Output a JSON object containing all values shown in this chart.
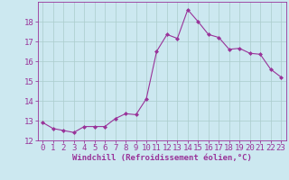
{
  "x": [
    0,
    1,
    2,
    3,
    4,
    5,
    6,
    7,
    8,
    9,
    10,
    11,
    12,
    13,
    14,
    15,
    16,
    17,
    18,
    19,
    20,
    21,
    22,
    23
  ],
  "y": [
    12.9,
    12.6,
    12.5,
    12.4,
    12.7,
    12.7,
    12.7,
    13.1,
    13.35,
    13.3,
    14.1,
    16.5,
    17.35,
    17.15,
    18.6,
    18.0,
    17.35,
    17.2,
    16.6,
    16.65,
    16.4,
    16.35,
    15.6,
    15.2
  ],
  "line_color": "#993399",
  "marker": "D",
  "marker_size": 2.0,
  "bg_color": "#cce8f0",
  "grid_color": "#aacccc",
  "xlabel": "Windchill (Refroidissement éolien,°C)",
  "xlabel_fontsize": 6.5,
  "tick_fontsize": 6.5,
  "ylim": [
    12,
    19
  ],
  "xlim": [
    -0.5,
    23.5
  ],
  "yticks": [
    12,
    13,
    14,
    15,
    16,
    17,
    18
  ],
  "xticks": [
    0,
    1,
    2,
    3,
    4,
    5,
    6,
    7,
    8,
    9,
    10,
    11,
    12,
    13,
    14,
    15,
    16,
    17,
    18,
    19,
    20,
    21,
    22,
    23
  ]
}
